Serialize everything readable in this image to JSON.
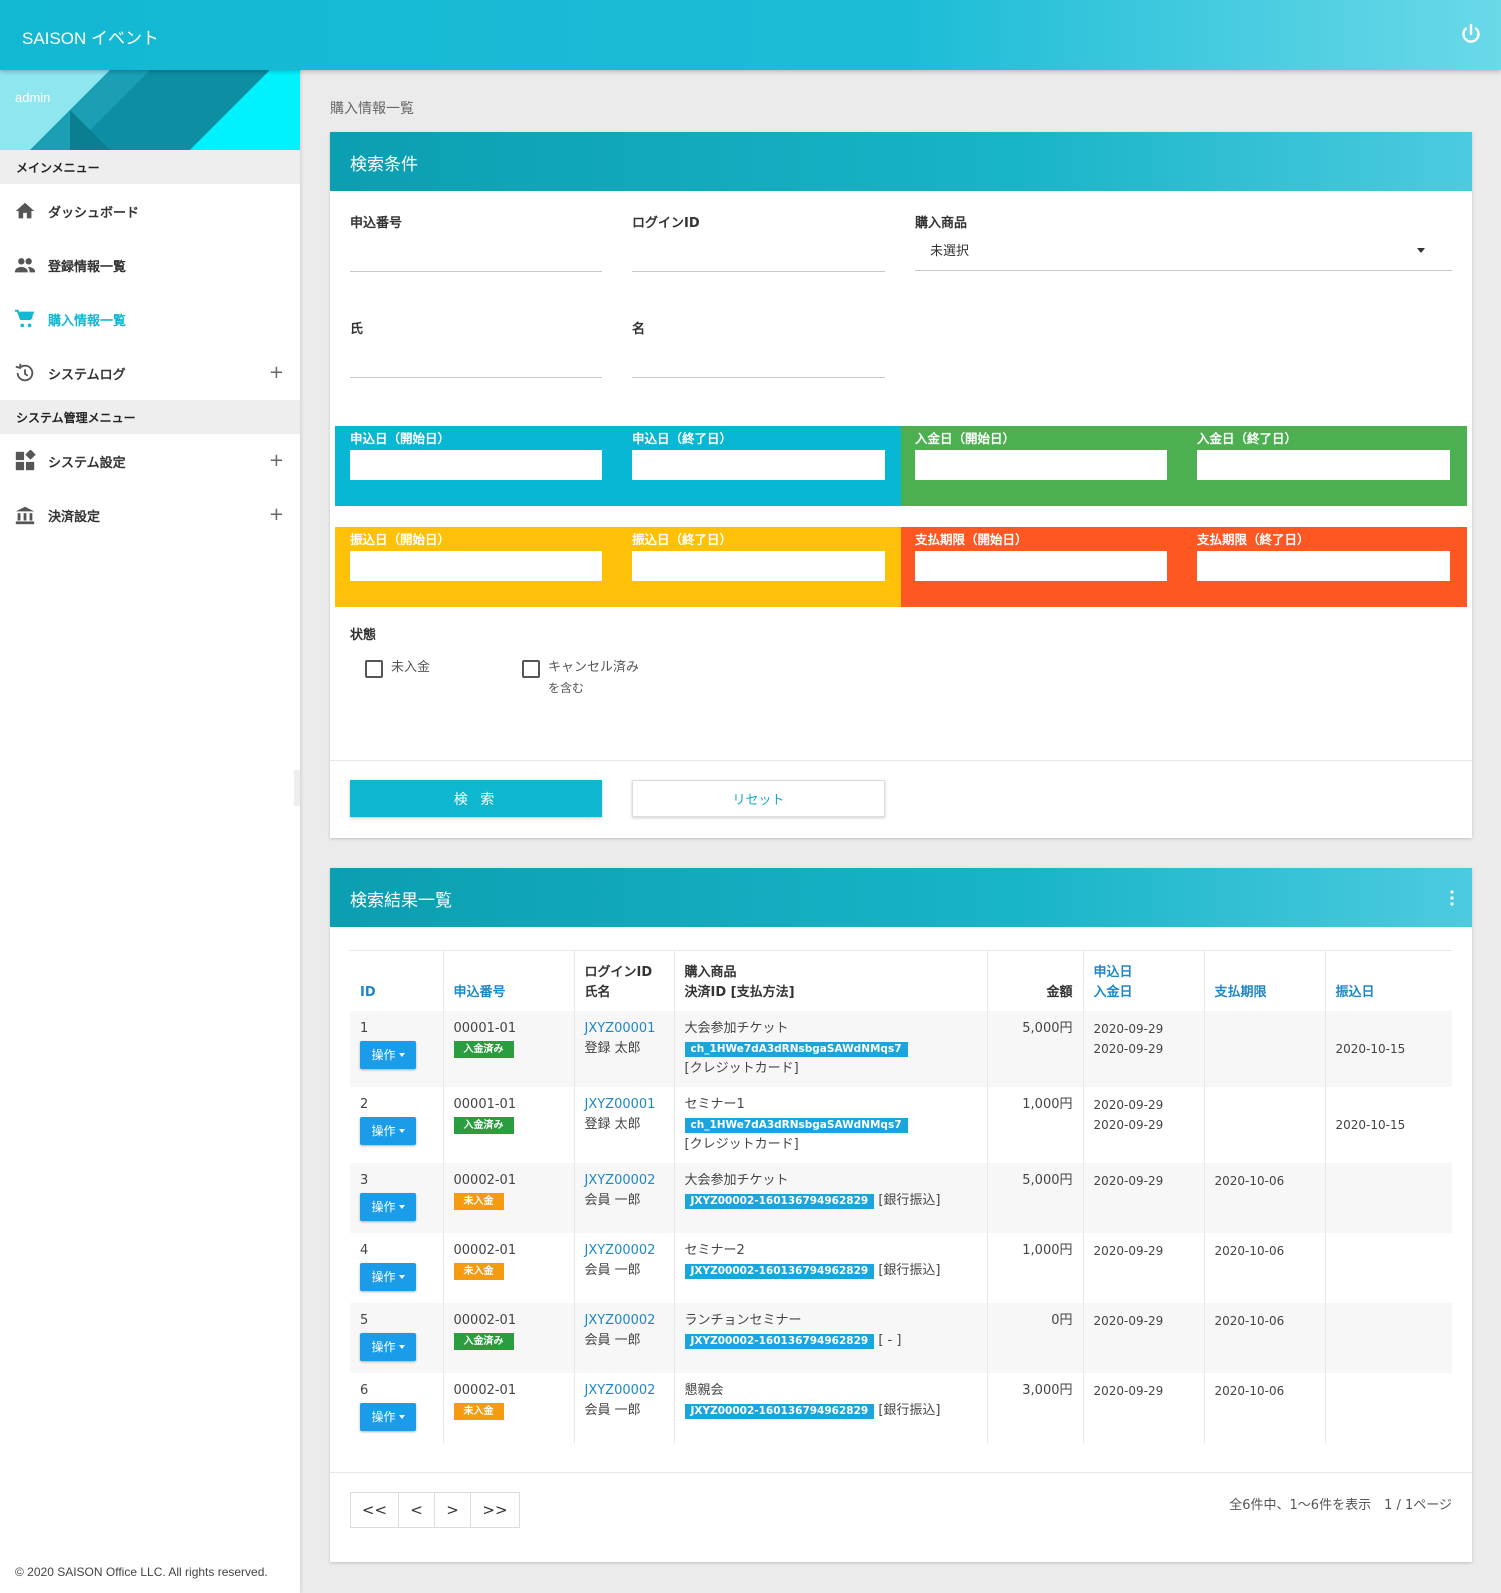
{
  "header": {
    "title": "SAISON イベント",
    "power_icon": "power-icon"
  },
  "sidebar": {
    "user": "admin",
    "main_menu_title": "メインメニュー",
    "main_items": [
      {
        "label": "ダッシュボード",
        "icon": "home-icon"
      },
      {
        "label": "登録情報一覧",
        "icon": "people-icon"
      },
      {
        "label": "購入情報一覧",
        "icon": "cart-icon",
        "active": true
      },
      {
        "label": "システムログ",
        "icon": "history-icon",
        "expand": "+"
      }
    ],
    "admin_menu_title": "システム管理メニュー",
    "admin_items": [
      {
        "label": "システム設定",
        "icon": "dashboard-grid-icon",
        "expand": "+"
      },
      {
        "label": "決済設定",
        "icon": "bank-icon",
        "expand": "+"
      }
    ],
    "footer": "© 2020 SAISON Office LLC. All rights reserved."
  },
  "breadcrumb": "購入情報一覧",
  "search": {
    "title": "検索条件",
    "fields": {
      "application_no": "申込番号",
      "login_id": "ログインID",
      "product": "購入商品",
      "product_value": "未選択",
      "last_name": "氏",
      "first_name": "名"
    },
    "dates": {
      "apply_start": "申込日（開始日）",
      "apply_end": "申込日（終了日）",
      "deposit_start": "入金日（開始日）",
      "deposit_end": "入金日（終了日）",
      "transfer_start": "振込日（開始日）",
      "transfer_end": "振込日（終了日）",
      "due_start": "支払期限（開始日）",
      "due_end": "支払期限（終了日）"
    },
    "state_label": "状態",
    "checkbox_unpaid": "未入金",
    "checkbox_cancel_line1": "キャンセル済み",
    "checkbox_cancel_line2": "を含む",
    "search_button": "検 索",
    "reset_button": "リセット",
    "colors": {
      "blue": "#07b7d4",
      "green": "#4caf50",
      "yellow": "#ffc107",
      "orange": "#ff5722"
    }
  },
  "results": {
    "title": "検索結果一覧",
    "headers": {
      "id": "ID",
      "application_no": "申込番号",
      "login_id": "ログインID",
      "name": "氏名",
      "product": "購入商品",
      "payment": "決済ID [支払方法]",
      "amount": "金額",
      "apply_date": "申込日",
      "deposit_date": "入金日",
      "due_date": "支払期限",
      "transfer_date": "振込日"
    },
    "op_label": "操作",
    "rows": [
      {
        "id": "1",
        "app_no": "00001-01",
        "status": "入金済み",
        "status_type": "paid",
        "login": "JXYZ00001",
        "name": "登録 太郎",
        "product": "大会参加チケット",
        "pay_id": "ch_1HWe7dA3dRNsbgaSAWdNMqs7",
        "method": "[クレジットカード]",
        "method_break": true,
        "amount": "5,000円",
        "apply": "2020-09-29",
        "deposit": "2020-09-29",
        "due": "",
        "transfer": "2020-10-15"
      },
      {
        "id": "2",
        "app_no": "00001-01",
        "status": "入金済み",
        "status_type": "paid",
        "login": "JXYZ00001",
        "name": "登録 太郎",
        "product": "セミナー1",
        "pay_id": "ch_1HWe7dA3dRNsbgaSAWdNMqs7",
        "method": "[クレジットカード]",
        "method_break": true,
        "amount": "1,000円",
        "apply": "2020-09-29",
        "deposit": "2020-09-29",
        "due": "",
        "transfer": "2020-10-15"
      },
      {
        "id": "3",
        "app_no": "00002-01",
        "status": "未入金",
        "status_type": "unpaid",
        "login": "JXYZ00002",
        "name": "会員 一郎",
        "product": "大会参加チケット",
        "pay_id": "JXYZ00002-160136794962829",
        "method": "[銀行振込]",
        "method_break": false,
        "amount": "5,000円",
        "apply": "2020-09-29",
        "deposit": "",
        "due": "2020-10-06",
        "transfer": ""
      },
      {
        "id": "4",
        "app_no": "00002-01",
        "status": "未入金",
        "status_type": "unpaid",
        "login": "JXYZ00002",
        "name": "会員 一郎",
        "product": "セミナー2",
        "pay_id": "JXYZ00002-160136794962829",
        "method": "[銀行振込]",
        "method_break": false,
        "amount": "1,000円",
        "apply": "2020-09-29",
        "deposit": "",
        "due": "2020-10-06",
        "transfer": ""
      },
      {
        "id": "5",
        "app_no": "00002-01",
        "status": "入金済み",
        "status_type": "paid",
        "login": "JXYZ00002",
        "name": "会員 一郎",
        "product": "ランチョンセミナー",
        "pay_id": "JXYZ00002-160136794962829",
        "method": "[ - ]",
        "method_break": false,
        "amount": "0円",
        "apply": "2020-09-29",
        "deposit": "",
        "due": "2020-10-06",
        "transfer": ""
      },
      {
        "id": "6",
        "app_no": "00002-01",
        "status": "未入金",
        "status_type": "unpaid",
        "login": "JXYZ00002",
        "name": "会員 一郎",
        "product": "懇親会",
        "pay_id": "JXYZ00002-160136794962829",
        "method": "[銀行振込]",
        "method_break": false,
        "amount": "3,000円",
        "apply": "2020-09-29",
        "deposit": "",
        "due": "2020-10-06",
        "transfer": ""
      }
    ],
    "pager": {
      "first": "<<",
      "prev": "<",
      "next": ">",
      "last": ">>"
    },
    "pager_info": "全6件中、1～6件を表示　1 / 1ページ"
  }
}
